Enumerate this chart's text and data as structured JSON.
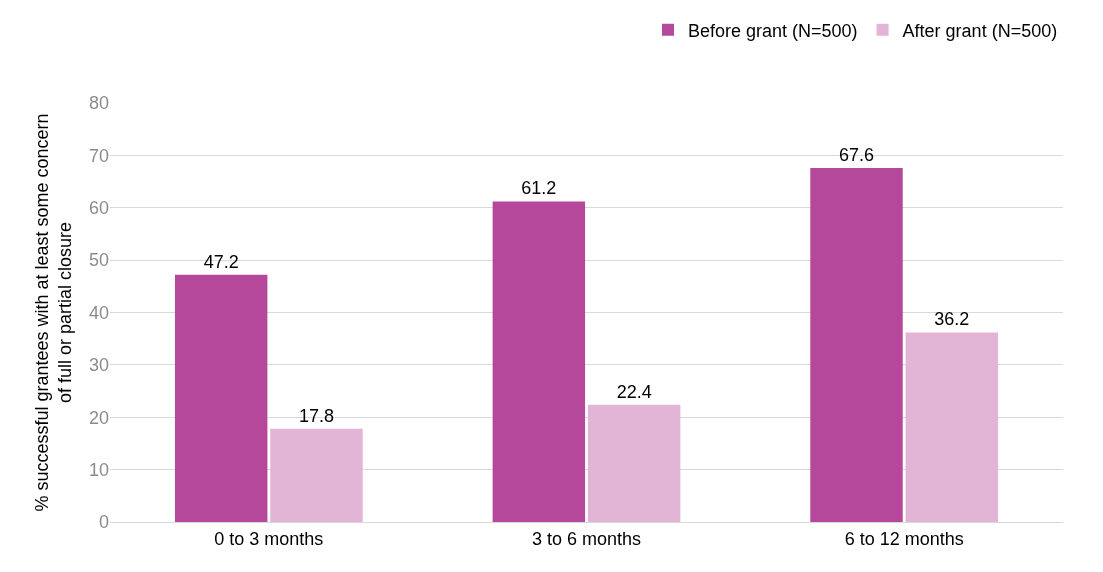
{
  "chart_data": {
    "type": "bar",
    "ylabel": "% successful grantees with at least some concern of full or partial closure",
    "categories": [
      "0 to 3 months",
      "3 to 6 months",
      "6 to 12 months"
    ],
    "series": [
      {
        "name": "Before grant (N=500)",
        "color": "#b5489a",
        "values": [
          47.2,
          61.2,
          67.6
        ]
      },
      {
        "name": "After grant (N=500)",
        "color": "#e2b4d6",
        "values": [
          17.8,
          22.4,
          36.2
        ]
      }
    ],
    "ylim": [
      0,
      80
    ],
    "yticks": [
      0,
      10,
      20,
      30,
      40,
      50,
      60,
      70,
      80
    ],
    "grid": "y",
    "legend": "top right",
    "data_labels": true
  }
}
